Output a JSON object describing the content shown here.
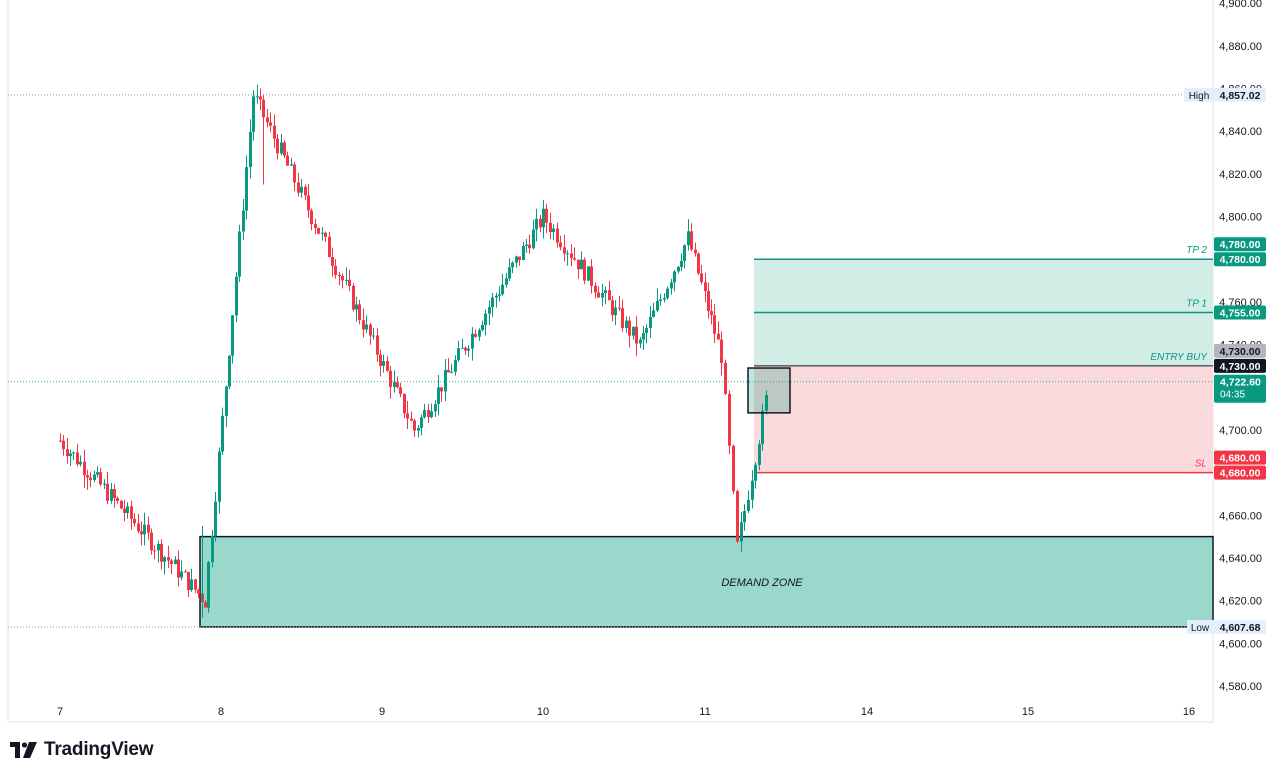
{
  "app": {
    "brand_name": "TradingView",
    "brand_icon": "tradingview-logo-icon"
  },
  "colors": {
    "up": "#089981",
    "down": "#f23645",
    "tp_zone": "#d2ede6",
    "tp_line": "#089981",
    "sl_zone": "#fbdadd",
    "sl_line": "#f23645",
    "demand_zone": "#99d8ca",
    "grid_dotted": "#9598a1",
    "price_badge": "#089981",
    "entry_badge": "#131722",
    "gray_badge": "#b2b5be"
  },
  "chart_data": {
    "type": "candlestick",
    "symbol_hint": "price chart",
    "y_axis": {
      "min": 4570,
      "max": 4900,
      "tick_labels": [
        "4,580.00",
        "4,600.00",
        "4,620.00",
        "4,640.00",
        "4,660.00",
        "4,680.00",
        "4,700.00",
        "4,720.00",
        "4,740.00",
        "4,760.00",
        "4,780.00",
        "4,800.00",
        "4,820.00",
        "4,840.00",
        "4,860.00",
        "4,880.00",
        "4,900.00"
      ],
      "tick_values": [
        4580,
        4600,
        4620,
        4640,
        4660,
        4680,
        4700,
        4720,
        4740,
        4760,
        4780,
        4800,
        4820,
        4840,
        4860,
        4880,
        4900
      ]
    },
    "x_axis": {
      "tick_labels": [
        "7",
        "8",
        "9",
        "10",
        "11",
        "14",
        "15",
        "16"
      ]
    },
    "high": {
      "label": "High",
      "value": 4857.02,
      "text": "4,857.02"
    },
    "low": {
      "label": "Low",
      "value": 4607.68,
      "text": "4,607.68"
    },
    "current_price": {
      "value": 4722.6,
      "text": "4,722.60",
      "countdown": "04:35"
    },
    "levels": [
      {
        "name": "TP 2",
        "value": 4780.0,
        "text": "4,780.00",
        "kind": "tp"
      },
      {
        "name": "TP 1",
        "value": 4755.0,
        "text": "4,755.00",
        "kind": "tp"
      },
      {
        "name": "ENTRY BUY",
        "value": 4730.0,
        "text": "4,730.00",
        "kind": "entry"
      },
      {
        "name": "SL",
        "value": 4680.0,
        "text": "4,680.00",
        "kind": "sl"
      }
    ],
    "extra_badges": [
      {
        "text": "4,780.00",
        "kind": "tp"
      },
      {
        "text": "4,730.00",
        "kind": "gray"
      },
      {
        "text": "4,680.00",
        "kind": "sl"
      }
    ],
    "demand_zone": {
      "label": "DEMAND ZONE",
      "top": 4650,
      "bottom": 4607.68
    },
    "highlight_box": {
      "top": 4729,
      "bottom": 4708
    },
    "key_points": [
      {
        "t": "7",
        "price": 4695
      },
      {
        "t": "7.9",
        "price": 4620
      },
      {
        "t": "8.2",
        "price": 4857.02
      },
      {
        "t": "9.2",
        "price": 4700
      },
      {
        "t": "10",
        "price": 4800
      },
      {
        "t": "10.6",
        "price": 4740
      },
      {
        "t": "10.9",
        "price": 4790
      },
      {
        "t": "11.1",
        "price": 4735
      },
      {
        "t": "11.2",
        "price": 4645
      },
      {
        "t": "11.4",
        "price": 4722.6
      }
    ]
  }
}
